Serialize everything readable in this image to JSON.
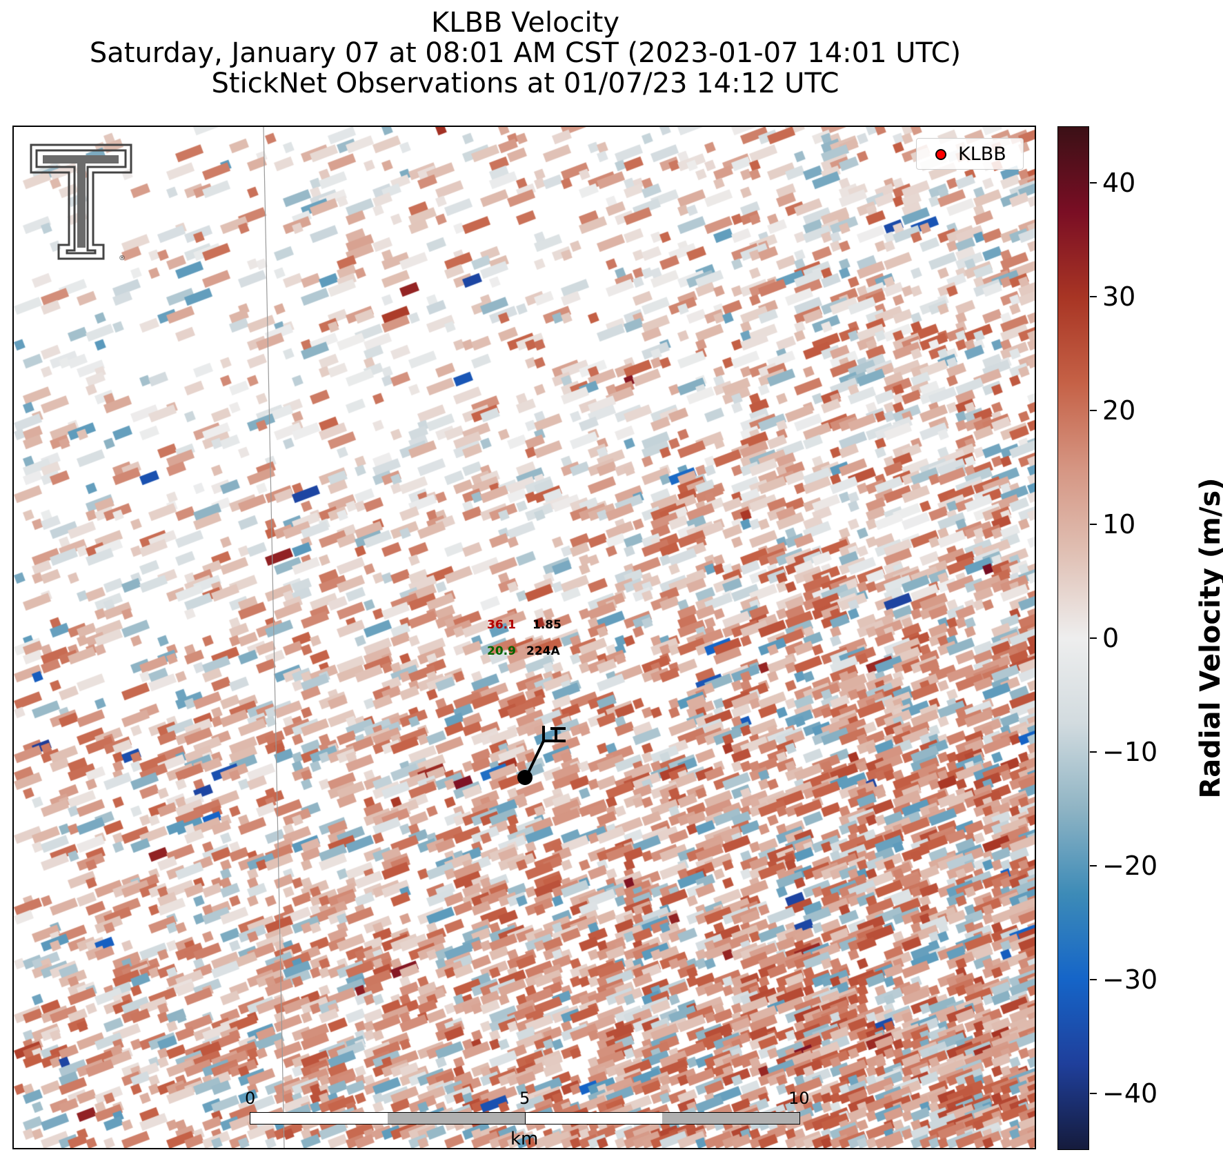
{
  "title": {
    "line1": "KLBB Velocity",
    "line2": "Saturday, January 07 at 08:01 AM CST (2023-01-07 14:01 UTC)",
    "line3": "StickNet Observations at 01/07/23 14:12 UTC"
  },
  "legend": {
    "label": "KLBB",
    "marker_color": "#ff0000"
  },
  "station": {
    "temperature": "36.1",
    "pressure": "1.85",
    "dewpoint": "20.9",
    "id": "224A"
  },
  "scalebar": {
    "ticks": [
      "0",
      "5",
      "10"
    ],
    "unit": "km"
  },
  "colorbar": {
    "label": "Radial Velocity (m/s)",
    "ticks": [
      "40",
      "30",
      "20",
      "10",
      "0",
      "−10",
      "−20",
      "−30",
      "−40"
    ],
    "range": [
      -45,
      45
    ],
    "colors": [
      "#151b3c",
      "#1f3f9b",
      "#1565c8",
      "#3d8bb7",
      "#8fb4c4",
      "#d2dbdf",
      "#eeeeee",
      "#e0c0b4",
      "#d59582",
      "#c56146",
      "#a83524",
      "#7a0e24",
      "#3b1016"
    ]
  },
  "logo": {
    "name": "texas-tech-logo"
  }
}
